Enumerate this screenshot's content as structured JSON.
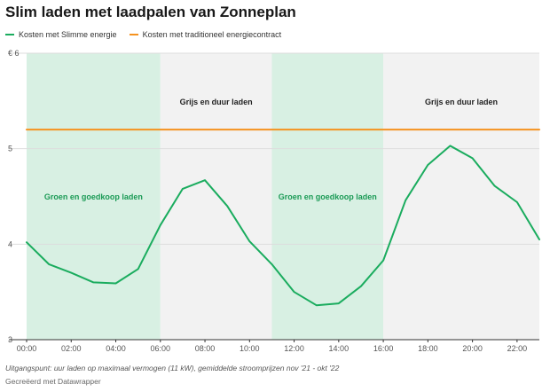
{
  "page": {
    "title": "Slim laden met laadpalen van Zonneplan"
  },
  "legend": {
    "items": [
      {
        "label": "Kosten met Slimme energie",
        "color": "#1aac5e"
      },
      {
        "label": "Kosten met traditioneel energiecontract",
        "color": "#f5921f"
      }
    ]
  },
  "chart_data": {
    "type": "line",
    "title": "Slim laden met laadpalen van Zonneplan",
    "xlabel": "",
    "ylabel": "",
    "xlim": [
      0,
      23
    ],
    "ylim": [
      3,
      6
    ],
    "x_ticks": [
      0,
      2,
      4,
      6,
      8,
      10,
      12,
      14,
      16,
      18,
      20,
      22
    ],
    "x_tick_labels": [
      "00:00",
      "02:00",
      "04:00",
      "06:00",
      "08:00",
      "10:00",
      "12:00",
      "14:00",
      "16:00",
      "18:00",
      "20:00",
      "22:00"
    ],
    "y_ticks": [
      3,
      4,
      5,
      6
    ],
    "y_tick_labels": [
      "3",
      "4",
      "5",
      "€ 6"
    ],
    "grid": "horizontal",
    "series": [
      {
        "name": "Kosten met Slimme energie",
        "color": "#1aac5e",
        "x": [
          0,
          1,
          2,
          3,
          4,
          5,
          6,
          7,
          8,
          9,
          10,
          11,
          12,
          13,
          14,
          15,
          16,
          17,
          18,
          19,
          20,
          21,
          22,
          23
        ],
        "values": [
          4.02,
          3.79,
          3.7,
          3.6,
          3.59,
          3.74,
          4.2,
          4.58,
          4.67,
          4.4,
          4.03,
          3.79,
          3.5,
          3.36,
          3.38,
          3.56,
          3.83,
          4.46,
          4.83,
          5.03,
          4.9,
          4.61,
          4.44,
          4.05
        ]
      },
      {
        "name": "Kosten met traditioneel energiecontract",
        "color": "#f5921f",
        "x": [
          0,
          23
        ],
        "values": [
          5.2,
          5.2
        ]
      }
    ],
    "bands": [
      {
        "from": 0,
        "to": 6,
        "label": "Groen en goedkoop laden",
        "fill": "#d8f0e3",
        "text_color": "#1a9a55"
      },
      {
        "from": 6,
        "to": 11,
        "label": "Grijs en duur laden",
        "fill": "#f2f2f2",
        "text_color": "#222222"
      },
      {
        "from": 11,
        "to": 16,
        "label": "Groen en goedkoop laden",
        "fill": "#d8f0e3",
        "text_color": "#1a9a55"
      },
      {
        "from": 16,
        "to": 23,
        "label": "Grijs en duur laden",
        "fill": "#f2f2f2",
        "text_color": "#222222"
      }
    ]
  },
  "footer": {
    "notes": "Uitgangspunt: uur laden op maximaal vermogen (11 kW), gemiddelde stroomprijzen nov '21 - okt '22",
    "credit": "Gecreëerd met Datawrapper"
  }
}
